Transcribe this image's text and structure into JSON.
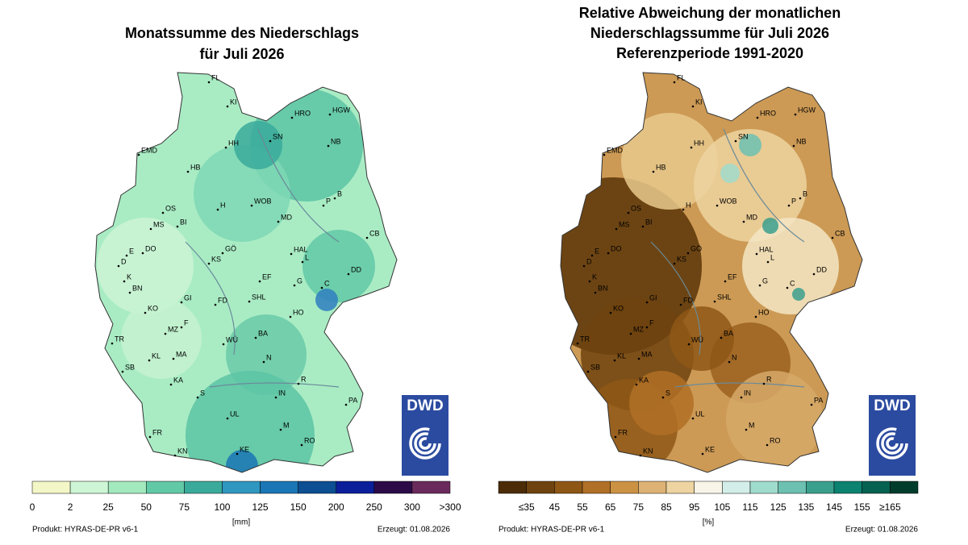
{
  "left_panel": {
    "title_lines": [
      "Monatssumme des Niederschlags",
      "für Juli 2026"
    ],
    "legend": {
      "labels": [
        "0",
        "2",
        "25",
        "50",
        "75",
        "100",
        "125",
        "150",
        "200",
        "250",
        "300",
        ">300"
      ],
      "colors": [
        "#f3f6c6",
        "#cdf5d6",
        "#a2e9bd",
        "#62c9a6",
        "#3aaa9b",
        "#2f97c0",
        "#1a76b5",
        "#0c4f92",
        "#0c1f9a",
        "#2c0a48",
        "#6b2a5c"
      ],
      "unit": "[mm]"
    },
    "footer": {
      "product": "Produkt: HYRAS-DE-PR v6-1",
      "created": "Erzeugt: 01.08.2026"
    }
  },
  "right_panel": {
    "title_lines": [
      "Relative Abweichung der monatlichen",
      "Niederschlagssumme für Juli 2026",
      "Referenzperiode 1991-2020"
    ],
    "legend": {
      "labels": [
        "≤35",
        "45",
        "55",
        "65",
        "75",
        "85",
        "95",
        "105",
        "115",
        "125",
        "135",
        "145",
        "155",
        "≥165"
      ],
      "colors": [
        "#4b2c07",
        "#6f430f",
        "#8e5716",
        "#b07026",
        "#cc9243",
        "#deb274",
        "#edd4a0",
        "#f8f4e8",
        "#d3eee8",
        "#a0dccd",
        "#6cc1b1",
        "#3b9f8d",
        "#0c8270",
        "#056150",
        "#003c2c"
      ],
      "unit": "[%]"
    },
    "footer": {
      "product": "Produkt: HYRAS-DE-PR v6-1",
      "created": "Erzeugt: 01.08.2026"
    }
  },
  "cities": [
    "FL",
    "KI",
    "HGW",
    "HRO",
    "SN",
    "NB",
    "EMD",
    "HH",
    "HB",
    "B",
    "P",
    "WOB",
    "OS",
    "MS",
    "BI",
    "H",
    "MD",
    "CB",
    "E",
    "DO",
    "D",
    "K",
    "BN",
    "GÖ",
    "KS",
    "HAL",
    "L",
    "DD",
    "EF",
    "G",
    "C",
    "GI",
    "FD",
    "SHL",
    "KO",
    "MZ",
    "F",
    "HO",
    "TR",
    "KL",
    "MA",
    "WÜ",
    "BA",
    "N",
    "SB",
    "KA",
    "R",
    "S",
    "IN",
    "PA",
    "UL",
    "M",
    "FR",
    "RO",
    "KN",
    "KE"
  ],
  "logo": "DWD"
}
